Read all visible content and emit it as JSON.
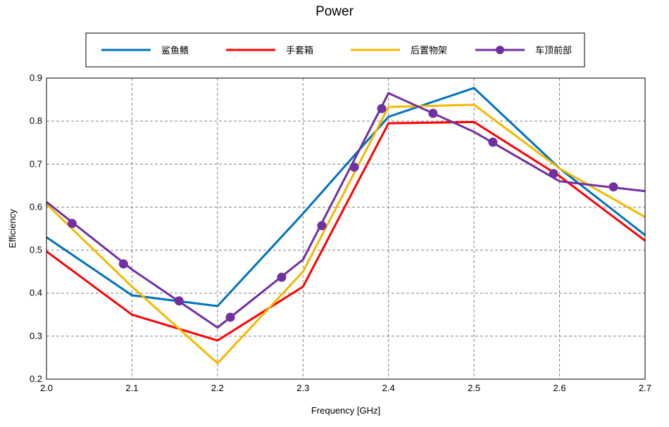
{
  "chart_data": {
    "type": "line",
    "title": "Power",
    "xlabel": "Frequency [GHz]",
    "ylabel": "Efficiency",
    "xlim": [
      2.0,
      2.7
    ],
    "ylim": [
      0.2,
      0.9
    ],
    "xticks": [
      "2.0",
      "2.1",
      "2.2",
      "2.3",
      "2.4",
      "2.5",
      "2.6",
      "2.7"
    ],
    "yticks": [
      "0.2",
      "0.3",
      "0.4",
      "0.5",
      "0.6",
      "0.7",
      "0.8",
      "0.9"
    ],
    "grid": true,
    "legend_position": "top",
    "series": [
      {
        "name": "鲨鱼鳍",
        "color": "#0072BD",
        "marker": false,
        "x": [
          2.0,
          2.1,
          2.2,
          2.3,
          2.4,
          2.5,
          2.6,
          2.7
        ],
        "y": [
          0.53,
          0.395,
          0.37,
          0.585,
          0.81,
          0.877,
          0.69,
          0.535
        ]
      },
      {
        "name": "手套箱",
        "color": "#FF0000",
        "marker": false,
        "x": [
          2.0,
          2.1,
          2.2,
          2.3,
          2.4,
          2.5,
          2.6,
          2.7
        ],
        "y": [
          0.497,
          0.35,
          0.29,
          0.415,
          0.795,
          0.798,
          0.672,
          0.522
        ]
      },
      {
        "name": "后置物架",
        "color": "#F5B800",
        "marker": false,
        "x": [
          2.0,
          2.1,
          2.2,
          2.3,
          2.4,
          2.5,
          2.6,
          2.7
        ],
        "y": [
          0.607,
          0.415,
          0.237,
          0.45,
          0.833,
          0.838,
          0.69,
          0.577
        ]
      },
      {
        "name": "车顶前部",
        "color": "#7030A0",
        "marker": true,
        "x": [
          2.0,
          2.1,
          2.2,
          2.3,
          2.4,
          2.5,
          2.6,
          2.7
        ],
        "y": [
          0.612,
          0.455,
          0.32,
          0.478,
          0.865,
          0.775,
          0.66,
          0.637
        ],
        "marker_x": [
          2.03,
          2.09,
          2.155,
          2.215,
          2.275,
          2.322,
          2.36,
          2.392,
          2.452,
          2.522,
          2.593,
          2.663
        ],
        "marker_y": [
          0.562,
          0.468,
          0.382,
          0.344,
          0.437,
          0.557,
          0.693,
          0.829,
          0.818,
          0.751,
          0.678,
          0.647
        ]
      }
    ]
  }
}
